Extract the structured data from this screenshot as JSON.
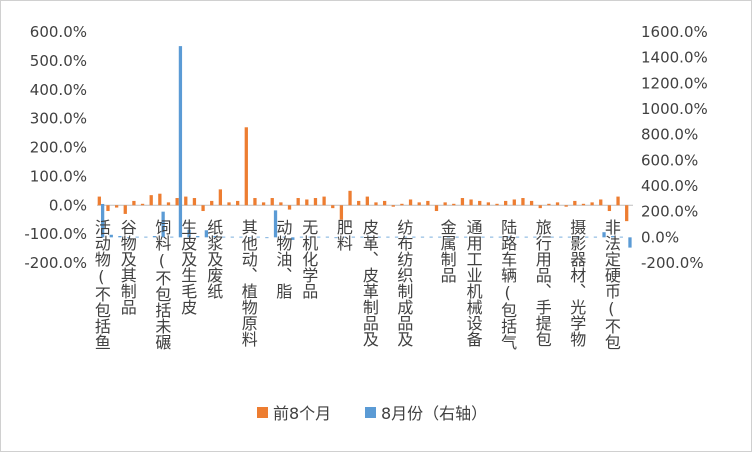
{
  "chart_data": {
    "type": "bar",
    "title": "",
    "legend_position": "bottom",
    "grid": false,
    "y_left": {
      "ylim": [
        -200,
        600
      ],
      "ticks": [
        "600.0%",
        "500.0%",
        "400.0%",
        "300.0%",
        "200.0%",
        "100.0%",
        "0.0%",
        "-100.0%",
        "-200.0%"
      ],
      "tick_values": [
        600,
        500,
        400,
        300,
        200,
        100,
        0,
        -100,
        -200
      ]
    },
    "y_right": {
      "ylim": [
        -200,
        1600
      ],
      "ticks": [
        "1600.0%",
        "1400.0%",
        "1200.0%",
        "1000.0%",
        "800.0%",
        "600.0%",
        "400.0%",
        "200.0%",
        "0.0%",
        "-200.0%"
      ],
      "tick_values": [
        1600,
        1400,
        1200,
        1000,
        800,
        600,
        400,
        200,
        0,
        -200
      ]
    },
    "category_labels": [
      "活动物(不包括鱼",
      "谷物及其制品",
      "饲料(不包括未碾",
      "生皮及生毛皮",
      "纸浆及废纸",
      "其他动、植物原料",
      "动物油、脂",
      "无机化学品",
      "肥料",
      "皮革、皮革制品及",
      "纺布纺织制成品及",
      "金属制品",
      "通用工业机械设备",
      "陆路车辆(包括气",
      "旅行用品、手提包",
      "摄影器材、光学物",
      "非法定硬币(不包"
    ],
    "label_category_index": [
      0,
      3,
      7,
      10,
      13,
      17,
      21,
      24,
      28,
      31,
      35,
      40,
      43,
      47,
      51,
      55,
      59
    ],
    "series": [
      {
        "name": "前8个月",
        "axis": "left",
        "color": "#ED7D31",
        "values": [
          30,
          -20,
          -8,
          -30,
          15,
          5,
          35,
          40,
          10,
          25,
          30,
          25,
          -20,
          15,
          55,
          10,
          15,
          270,
          25,
          10,
          25,
          10,
          -15,
          25,
          20,
          25,
          30,
          -10,
          -50,
          50,
          15,
          30,
          10,
          15,
          -5,
          5,
          20,
          10,
          15,
          -20,
          10,
          5,
          25,
          20,
          15,
          10,
          5,
          15,
          20,
          25,
          15,
          -10,
          5,
          10,
          -5,
          15,
          5,
          10,
          20,
          -20,
          30,
          -55
        ]
      },
      {
        "name": "8月份",
        "axis": "right",
        "color": "#5B9BD5",
        "values": [
          260,
          20,
          10,
          0,
          5,
          5,
          10,
          200,
          5,
          1490,
          60,
          10,
          55,
          10,
          5,
          5,
          5,
          0,
          5,
          0,
          210,
          5,
          -20,
          5,
          5,
          5,
          5,
          0,
          5,
          5,
          5,
          5,
          5,
          5,
          5,
          5,
          5,
          5,
          5,
          5,
          5,
          5,
          5,
          5,
          5,
          5,
          5,
          5,
          5,
          5,
          5,
          5,
          5,
          5,
          5,
          5,
          5,
          5,
          40,
          10,
          5,
          -80
        ]
      }
    ],
    "legend": [
      {
        "label": "前8个月",
        "color": "#ED7D31"
      },
      {
        "label": "8月份（右轴）",
        "color": "#5B9BD5"
      }
    ]
  }
}
